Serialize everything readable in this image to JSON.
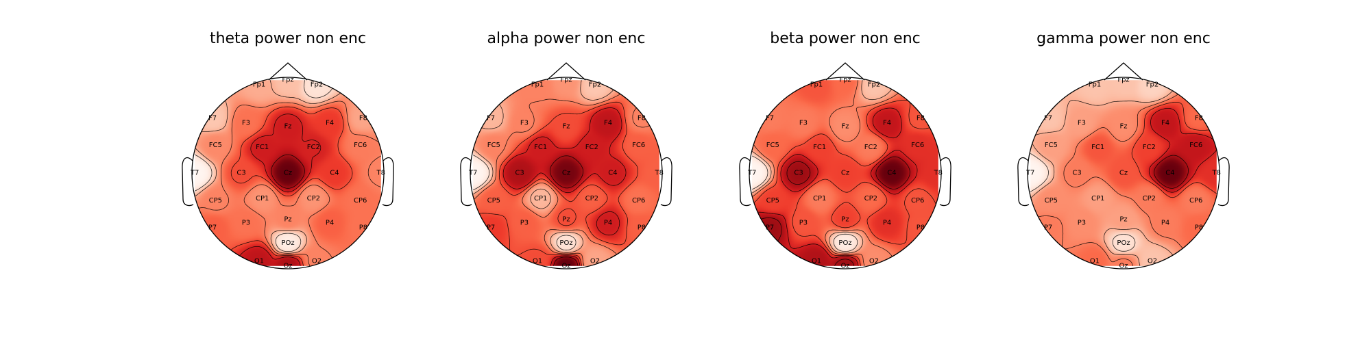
{
  "chart_data": {
    "type": "heatmap",
    "colormap": "Reds",
    "electrodes": [
      {
        "name": "Fp1",
        "az": -18,
        "el": -90
      },
      {
        "name": "Fpz",
        "az": 0,
        "el": -90
      },
      {
        "name": "Fp2",
        "az": 18,
        "el": -90
      },
      {
        "name": "F7",
        "az": -54,
        "el": -90
      },
      {
        "name": "F3",
        "az": -40,
        "el": -63
      },
      {
        "name": "Fz",
        "az": 0,
        "el": -45
      },
      {
        "name": "F4",
        "az": 40,
        "el": -63
      },
      {
        "name": "F8",
        "az": 54,
        "el": -90
      },
      {
        "name": "FC5",
        "az": -69,
        "el": -75
      },
      {
        "name": "FC1",
        "az": -45,
        "el": -35
      },
      {
        "name": "FC2",
        "az": 45,
        "el": -35
      },
      {
        "name": "FC6",
        "az": 69,
        "el": -75
      },
      {
        "name": "T7",
        "az": -90,
        "el": -90
      },
      {
        "name": "C3",
        "az": -90,
        "el": -45
      },
      {
        "name": "Cz",
        "az": 0,
        "el": 0
      },
      {
        "name": "C4",
        "az": 90,
        "el": -45
      },
      {
        "name": "T8",
        "az": 90,
        "el": -90
      },
      {
        "name": "CP5",
        "az": -111,
        "el": -75
      },
      {
        "name": "CP1",
        "az": -135,
        "el": -35
      },
      {
        "name": "CP2",
        "az": 135,
        "el": -35
      },
      {
        "name": "CP6",
        "az": 111,
        "el": -75
      },
      {
        "name": "P7",
        "az": -126,
        "el": -90
      },
      {
        "name": "P3",
        "az": -140,
        "el": -63
      },
      {
        "name": "Pz",
        "az": 180,
        "el": -45
      },
      {
        "name": "P4",
        "az": 140,
        "el": -63
      },
      {
        "name": "P8",
        "az": 126,
        "el": -90
      },
      {
        "name": "POz",
        "az": 180,
        "el": -68
      },
      {
        "name": "O1",
        "az": -162,
        "el": -90
      },
      {
        "name": "Oz",
        "az": 180,
        "el": -90
      },
      {
        "name": "O2",
        "az": 162,
        "el": -90
      }
    ],
    "panels": [
      {
        "title": "theta power non enc",
        "values": {
          "Fp1": 0.28,
          "Fpz": 0.22,
          "Fp2": 0.1,
          "F7": 0.2,
          "F3": 0.45,
          "Fz": 0.7,
          "F4": 0.6,
          "F8": 0.3,
          "FC5": 0.38,
          "FC1": 0.7,
          "FC2": 0.68,
          "FC6": 0.42,
          "T7": 0.0,
          "C3": 0.55,
          "Cz": 0.95,
          "C4": 0.6,
          "T8": 0.4,
          "CP5": 0.4,
          "CP1": 0.35,
          "CP2": 0.35,
          "CP6": 0.45,
          "P7": 0.5,
          "P3": 0.45,
          "Pz": 0.4,
          "P4": 0.5,
          "P8": 0.45,
          "POz": 0.05,
          "O1": 0.75,
          "Oz": 0.8,
          "O2": 0.4
        }
      },
      {
        "title": "alpha power non enc",
        "values": {
          "Fp1": 0.4,
          "Fpz": 0.35,
          "Fp2": 0.2,
          "F7": 0.25,
          "F3": 0.4,
          "Fz": 0.55,
          "F4": 0.75,
          "F8": 0.4,
          "FC5": 0.4,
          "FC1": 0.7,
          "FC2": 0.7,
          "FC6": 0.5,
          "T7": 0.0,
          "C3": 0.8,
          "Cz": 0.92,
          "C4": 0.7,
          "T8": 0.5,
          "CP5": 0.5,
          "CP1": 0.25,
          "CP2": 0.5,
          "CP6": 0.45,
          "P7": 0.6,
          "P3": 0.5,
          "Pz": 0.55,
          "P4": 0.7,
          "P8": 0.5,
          "POz": 0.1,
          "O1": 0.55,
          "Oz": 0.95,
          "O2": 0.3
        }
      },
      {
        "title": "beta power non enc",
        "values": {
          "Fp1": 0.5,
          "Fpz": 0.45,
          "Fp2": 0.2,
          "F7": 0.4,
          "F3": 0.4,
          "Fz": 0.35,
          "F4": 0.7,
          "F8": 0.5,
          "FC5": 0.45,
          "FC1": 0.55,
          "FC2": 0.4,
          "FC6": 0.6,
          "T7": 0.0,
          "C3": 0.8,
          "Cz": 0.55,
          "C4": 0.9,
          "T8": 0.6,
          "CP5": 0.55,
          "CP1": 0.4,
          "CP2": 0.45,
          "CP6": 0.5,
          "P7": 0.8,
          "P3": 0.5,
          "Pz": 0.55,
          "P4": 0.6,
          "P8": 0.5,
          "POz": 0.05,
          "O1": 0.75,
          "Oz": 0.8,
          "O2": 0.35
        }
      },
      {
        "title": "gamma power non enc",
        "values": {
          "Fp1": 0.2,
          "Fpz": 0.2,
          "Fp2": 0.15,
          "F7": 0.2,
          "F3": 0.3,
          "Fz": 0.35,
          "F4": 0.7,
          "F8": 0.45,
          "FC5": 0.3,
          "FC1": 0.5,
          "FC2": 0.55,
          "FC6": 0.7,
          "T7": 0.0,
          "C3": 0.4,
          "Cz": 0.5,
          "C4": 0.9,
          "T8": 0.6,
          "CP5": 0.35,
          "CP1": 0.3,
          "CP2": 0.4,
          "CP6": 0.4,
          "P7": 0.4,
          "P3": 0.35,
          "Pz": 0.3,
          "P4": 0.4,
          "P8": 0.45,
          "POz": 0.1,
          "O1": 0.45,
          "Oz": 0.4,
          "O2": 0.2
        }
      }
    ]
  }
}
